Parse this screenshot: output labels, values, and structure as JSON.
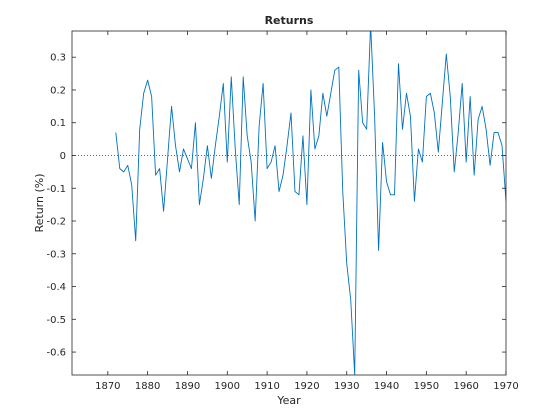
{
  "chart_data": {
    "type": "line",
    "title": "Returns",
    "xlabel": "Year",
    "ylabel": "Return (%)",
    "xlim": [
      1861,
      1970
    ],
    "ylim": [
      -0.67,
      0.38
    ],
    "grid": false,
    "xticks": [
      1870,
      1880,
      1890,
      1900,
      1910,
      1920,
      1930,
      1940,
      1950,
      1960,
      1970
    ],
    "yticks": [
      0.3,
      0.2,
      0.1,
      0,
      -0.1,
      -0.2,
      -0.3,
      -0.4,
      -0.5,
      -0.6
    ],
    "reference_line": {
      "y": 0,
      "style": "dotted",
      "color": "#e83030"
    },
    "series": [
      {
        "color": "#0072bd",
        "x": [
          1872,
          1873,
          1874,
          1875,
          1876,
          1877,
          1878,
          1879,
          1880,
          1881,
          1882,
          1883,
          1884,
          1885,
          1886,
          1887,
          1888,
          1889,
          1890,
          1891,
          1892,
          1893,
          1894,
          1895,
          1896,
          1897,
          1898,
          1899,
          1900,
          1901,
          1902,
          1903,
          1904,
          1905,
          1906,
          1907,
          1908,
          1909,
          1910,
          1911,
          1912,
          1913,
          1914,
          1915,
          1916,
          1917,
          1918,
          1919,
          1920,
          1921,
          1922,
          1923,
          1924,
          1925,
          1926,
          1927,
          1928,
          1929,
          1930,
          1931,
          1932,
          1933,
          1934,
          1935,
          1936,
          1937,
          1938,
          1939,
          1940,
          1941,
          1942,
          1943,
          1944,
          1945,
          1946,
          1947,
          1948,
          1949,
          1950,
          1951,
          1952,
          1953,
          1954,
          1955,
          1956,
          1957,
          1958,
          1959,
          1960,
          1961,
          1962,
          1963,
          1964,
          1965,
          1966,
          1967,
          1968,
          1969,
          1970
        ],
        "values": [
          0.07,
          -0.04,
          -0.05,
          -0.03,
          -0.09,
          -0.26,
          0.08,
          0.19,
          0.23,
          0.18,
          -0.06,
          -0.04,
          -0.17,
          -0.01,
          0.15,
          0.03,
          -0.05,
          0.02,
          -0.01,
          -0.04,
          0.1,
          -0.15,
          -0.07,
          0.03,
          -0.07,
          0.03,
          0.12,
          0.22,
          -0.02,
          0.24,
          0.02,
          -0.15,
          0.24,
          0.06,
          -0.02,
          -0.2,
          0.09,
          0.22,
          -0.04,
          -0.02,
          0.03,
          -0.11,
          -0.06,
          0.03,
          0.13,
          -0.11,
          -0.12,
          0.06,
          -0.15,
          0.2,
          0.02,
          0.06,
          0.19,
          0.12,
          0.19,
          0.26,
          0.27,
          -0.11,
          -0.33,
          -0.44,
          -0.67,
          0.26,
          0.1,
          0.08,
          0.4,
          0.12,
          -0.29,
          0.04,
          -0.08,
          -0.12,
          -0.12,
          0.28,
          0.08,
          0.19,
          0.12,
          -0.14,
          0.02,
          -0.02,
          0.18,
          0.19,
          0.13,
          0.01,
          0.16,
          0.31,
          0.18,
          -0.05,
          0.07,
          0.22,
          -0.02,
          0.18,
          -0.06,
          0.11,
          0.15,
          0.08,
          -0.03,
          0.07,
          0.07,
          0.03,
          -0.14
        ]
      }
    ]
  }
}
